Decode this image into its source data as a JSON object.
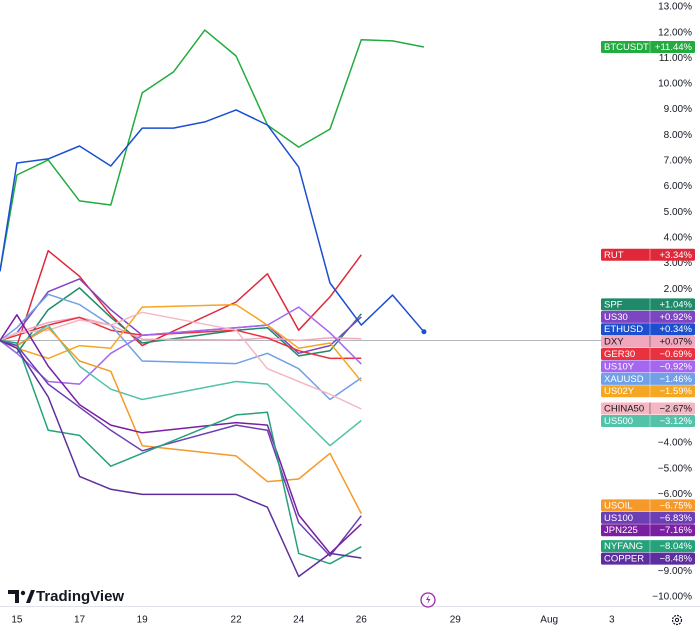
{
  "chart_data": {
    "type": "line",
    "branding": "TradingView",
    "xlim": [
      14.46,
      35.06
    ],
    "xticks": [
      15,
      17,
      19,
      22,
      24,
      26,
      29,
      {
        "value": 32,
        "label": "Aug"
      },
      {
        "value": 34,
        "label": "3"
      }
    ],
    "ylim": [
      -10,
      13
    ],
    "yticks": [
      {
        "value": 13,
        "label": "13.00%"
      },
      {
        "value": 12,
        "label": "12.00%"
      },
      {
        "value": 11,
        "label": "11.00%"
      },
      {
        "value": 10,
        "label": "10.00%"
      },
      {
        "value": 9,
        "label": "9.00%"
      },
      {
        "value": 8,
        "label": "8.00%"
      },
      {
        "value": 7,
        "label": "7.00%"
      },
      {
        "value": 6,
        "label": "6.00%"
      },
      {
        "value": 5,
        "label": "5.00%"
      },
      {
        "value": 4,
        "label": "4.00%"
      },
      {
        "value": 3,
        "label": "3.00%"
      },
      {
        "value": 2,
        "label": "2.00%"
      },
      {
        "value": -4,
        "label": "−4.00%"
      },
      {
        "value": -5,
        "label": "−5.00%"
      },
      {
        "value": -6,
        "label": "−6.00%"
      },
      {
        "value": -9,
        "label": "−9.00%"
      },
      {
        "value": -10,
        "label": "−10.00%"
      }
    ],
    "baseline": 0,
    "grid": false,
    "series": [
      {
        "name": "BTCUSDT",
        "color": "#22ab3f",
        "last_label": "+11.44%",
        "x": [
          14.46,
          15,
          16,
          17,
          18,
          19,
          20,
          21,
          22,
          23,
          24,
          25,
          26,
          27,
          28
        ],
        "values": [
          2.7,
          6.45,
          7.04,
          5.44,
          5.28,
          9.65,
          10.47,
          12.1,
          11.09,
          8.4,
          7.54,
          8.24,
          11.72,
          11.68,
          11.44
        ]
      },
      {
        "name": "RUT",
        "color": "#e0283a",
        "last_label": "+3.34%",
        "x": [
          14.46,
          15,
          16,
          17,
          18,
          19,
          22,
          23,
          24,
          25,
          26
        ],
        "values": [
          0,
          -0.2,
          3.5,
          2.5,
          1.0,
          -0.2,
          1.5,
          2.6,
          0.4,
          1.7,
          3.34
        ]
      },
      {
        "name": "SPF",
        "color": "#1f8a6a",
        "last_label": "+1.04%",
        "x": [
          14.46,
          15,
          16,
          17,
          18,
          19,
          22,
          23,
          24,
          25,
          26
        ],
        "values": [
          0,
          -0.5,
          1.2,
          2.05,
          0.9,
          -0.1,
          0.4,
          0.5,
          -0.6,
          -0.4,
          1.04
        ]
      },
      {
        "name": "US30",
        "color": "#7e45c2",
        "last_label": "+0.92%",
        "x": [
          14.46,
          15,
          16,
          17,
          18,
          19,
          22,
          23,
          24,
          25,
          26
        ],
        "values": [
          0,
          0.3,
          1.9,
          2.4,
          1.2,
          0.2,
          0.5,
          0.6,
          -0.5,
          -0.2,
          0.92
        ]
      },
      {
        "name": "ETHUSD",
        "color": "#1b4fd0",
        "last_label": "+0.34%",
        "x": [
          14.46,
          15,
          16,
          17,
          18,
          19,
          20,
          21,
          22,
          23,
          24,
          25,
          26,
          27,
          28
        ],
        "values": [
          2.7,
          6.92,
          7.08,
          7.58,
          6.8,
          8.28,
          8.28,
          8.52,
          8.99,
          8.4,
          6.76,
          2.24,
          0.6,
          1.77,
          0.34
        ]
      },
      {
        "name": "DXY",
        "color": "#f0a8bc",
        "last_label": "+0.07%",
        "x": [
          14.46,
          15,
          16,
          17,
          18,
          19,
          22,
          23,
          24,
          25,
          26
        ],
        "values": [
          0,
          0.3,
          0.7,
          0.9,
          0.6,
          0.05,
          0.02,
          0.1,
          0.0,
          0.1,
          0.07
        ]
      },
      {
        "name": "GER30",
        "color": "#e8323f",
        "last_label": "−0.69%",
        "x": [
          14.46,
          15,
          16,
          17,
          18,
          19,
          22,
          23,
          24,
          25,
          26
        ],
        "values": [
          0,
          0.2,
          0.6,
          0.9,
          0.4,
          0.2,
          0.4,
          0.1,
          -0.4,
          -0.7,
          -0.69
        ]
      },
      {
        "name": "US10Y",
        "color": "#a566f0",
        "last_label": "−0.92%",
        "x": [
          14.46,
          15,
          16,
          17,
          18,
          19,
          22,
          23,
          24,
          25,
          26
        ],
        "values": [
          0,
          -0.5,
          -1.6,
          -1.7,
          -0.5,
          0.2,
          0.5,
          0.6,
          1.3,
          0.3,
          -0.92
        ]
      },
      {
        "name": "XAUUSD",
        "color": "#6fa0e8",
        "last_label": "−1.46%",
        "x": [
          14.46,
          15,
          16,
          17,
          18,
          19,
          22,
          23,
          24,
          25,
          26
        ],
        "values": [
          0,
          0.5,
          1.8,
          1.4,
          0.6,
          -0.8,
          -0.9,
          -0.5,
          -1.1,
          -2.3,
          -1.46
        ]
      },
      {
        "name": "US02Y",
        "color": "#f5a623",
        "last_label": "−1.59%",
        "x": [
          14.46,
          15,
          16,
          17,
          18,
          19,
          22,
          23,
          24,
          25,
          26
        ],
        "values": [
          0,
          -0.3,
          -0.7,
          -0.2,
          -0.3,
          1.3,
          1.4,
          0.6,
          -0.3,
          -0.1,
          -1.59
        ]
      },
      {
        "name": "CHINA50",
        "color": "#f5b8c2",
        "last_label": "−2.67%",
        "x": [
          14.46,
          15,
          16,
          17,
          18,
          19,
          22,
          23,
          24,
          25,
          26
        ],
        "values": [
          0,
          0.3,
          0.4,
          0.8,
          0.6,
          1.1,
          0.4,
          -1.1,
          -1.6,
          -2.1,
          -2.67
        ]
      },
      {
        "name": "US500",
        "color": "#52c2a8",
        "last_label": "−3.12%",
        "x": [
          14.46,
          15,
          16,
          17,
          18,
          19,
          22,
          23,
          24,
          25,
          26
        ],
        "values": [
          0,
          -0.2,
          0.6,
          -1.0,
          -1.9,
          -2.3,
          -1.6,
          -1.7,
          -2.9,
          -4.1,
          -3.12
        ]
      },
      {
        "name": "USOIL",
        "color": "#f59a2a",
        "last_label": "−6.75%",
        "x": [
          14.46,
          15,
          16,
          17,
          18,
          19,
          22,
          23,
          24,
          25,
          26
        ],
        "values": [
          0,
          -0.2,
          0.5,
          -0.8,
          -1.2,
          -4.1,
          -4.5,
          -5.5,
          -5.4,
          -4.4,
          -6.75
        ]
      },
      {
        "name": "US100",
        "color": "#6c3fb5",
        "last_label": "−6.83%",
        "x": [
          14.46,
          15,
          16,
          17,
          18,
          19,
          22,
          23,
          24,
          25,
          26
        ],
        "values": [
          0,
          -0.2,
          -1.7,
          -2.6,
          -3.5,
          -4.3,
          -3.3,
          -3.5,
          -7.1,
          -8.4,
          -6.83
        ]
      },
      {
        "name": "JPN225",
        "color": "#7a1fa2",
        "last_label": "−7.16%",
        "x": [
          14.46,
          15,
          16,
          17,
          18,
          19,
          22,
          23,
          24,
          25,
          26
        ],
        "values": [
          0,
          1.0,
          -1.0,
          -2.5,
          -3.3,
          -3.6,
          -3.2,
          -3.3,
          -6.8,
          -8.3,
          -7.16
        ]
      },
      {
        "name": "NYFANG",
        "color": "#26a27a",
        "last_label": "−8.04%",
        "x": [
          14.46,
          15,
          16,
          17,
          18,
          19,
          22,
          23,
          24,
          25,
          26
        ],
        "values": [
          0,
          -0.1,
          -3.5,
          -3.7,
          -4.9,
          -4.4,
          -2.9,
          -2.8,
          -8.3,
          -8.7,
          -8.04
        ]
      },
      {
        "name": "COPPER",
        "color": "#5c2ea0",
        "last_label": "−8.48%",
        "x": [
          14.46,
          15,
          16,
          17,
          18,
          19,
          22,
          23,
          24,
          25,
          26
        ],
        "values": [
          0,
          -0.3,
          -2.2,
          -5.3,
          -5.8,
          -6.0,
          -6.0,
          -6.5,
          -9.2,
          -8.3,
          -8.48
        ]
      }
    ]
  }
}
